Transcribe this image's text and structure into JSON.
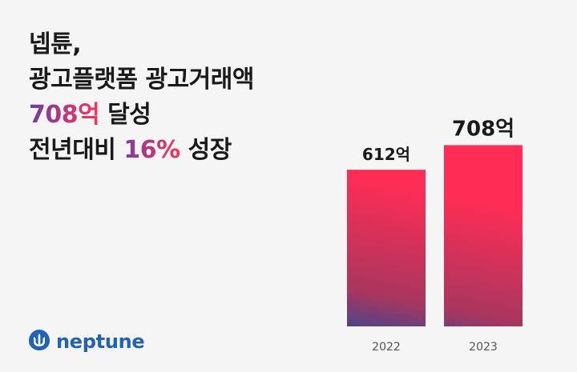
{
  "headline": {
    "line1": "넵튠,",
    "line2": "광고플랫폼 광고거래액",
    "line3_highlight": "708억",
    "line3_rest": " 달성",
    "line4_pre": "전년대비 ",
    "line4_highlight": "16%",
    "line4_post": " 성장"
  },
  "logo": {
    "text": "neptune",
    "icon": "neptune-trident-icon"
  },
  "colors": {
    "bar_top": "#ff2d55",
    "bar_bottom": "#2a4a9a",
    "brand": "#2162b8",
    "text": "#1a1a1a"
  },
  "chart_data": {
    "type": "bar",
    "categories": [
      "2022",
      "2023"
    ],
    "values": [
      612,
      708
    ],
    "value_labels": [
      "612억",
      "708억"
    ],
    "title": "",
    "xlabel": "",
    "ylabel": "",
    "ylim": [
      0,
      900
    ],
    "grid": false
  }
}
